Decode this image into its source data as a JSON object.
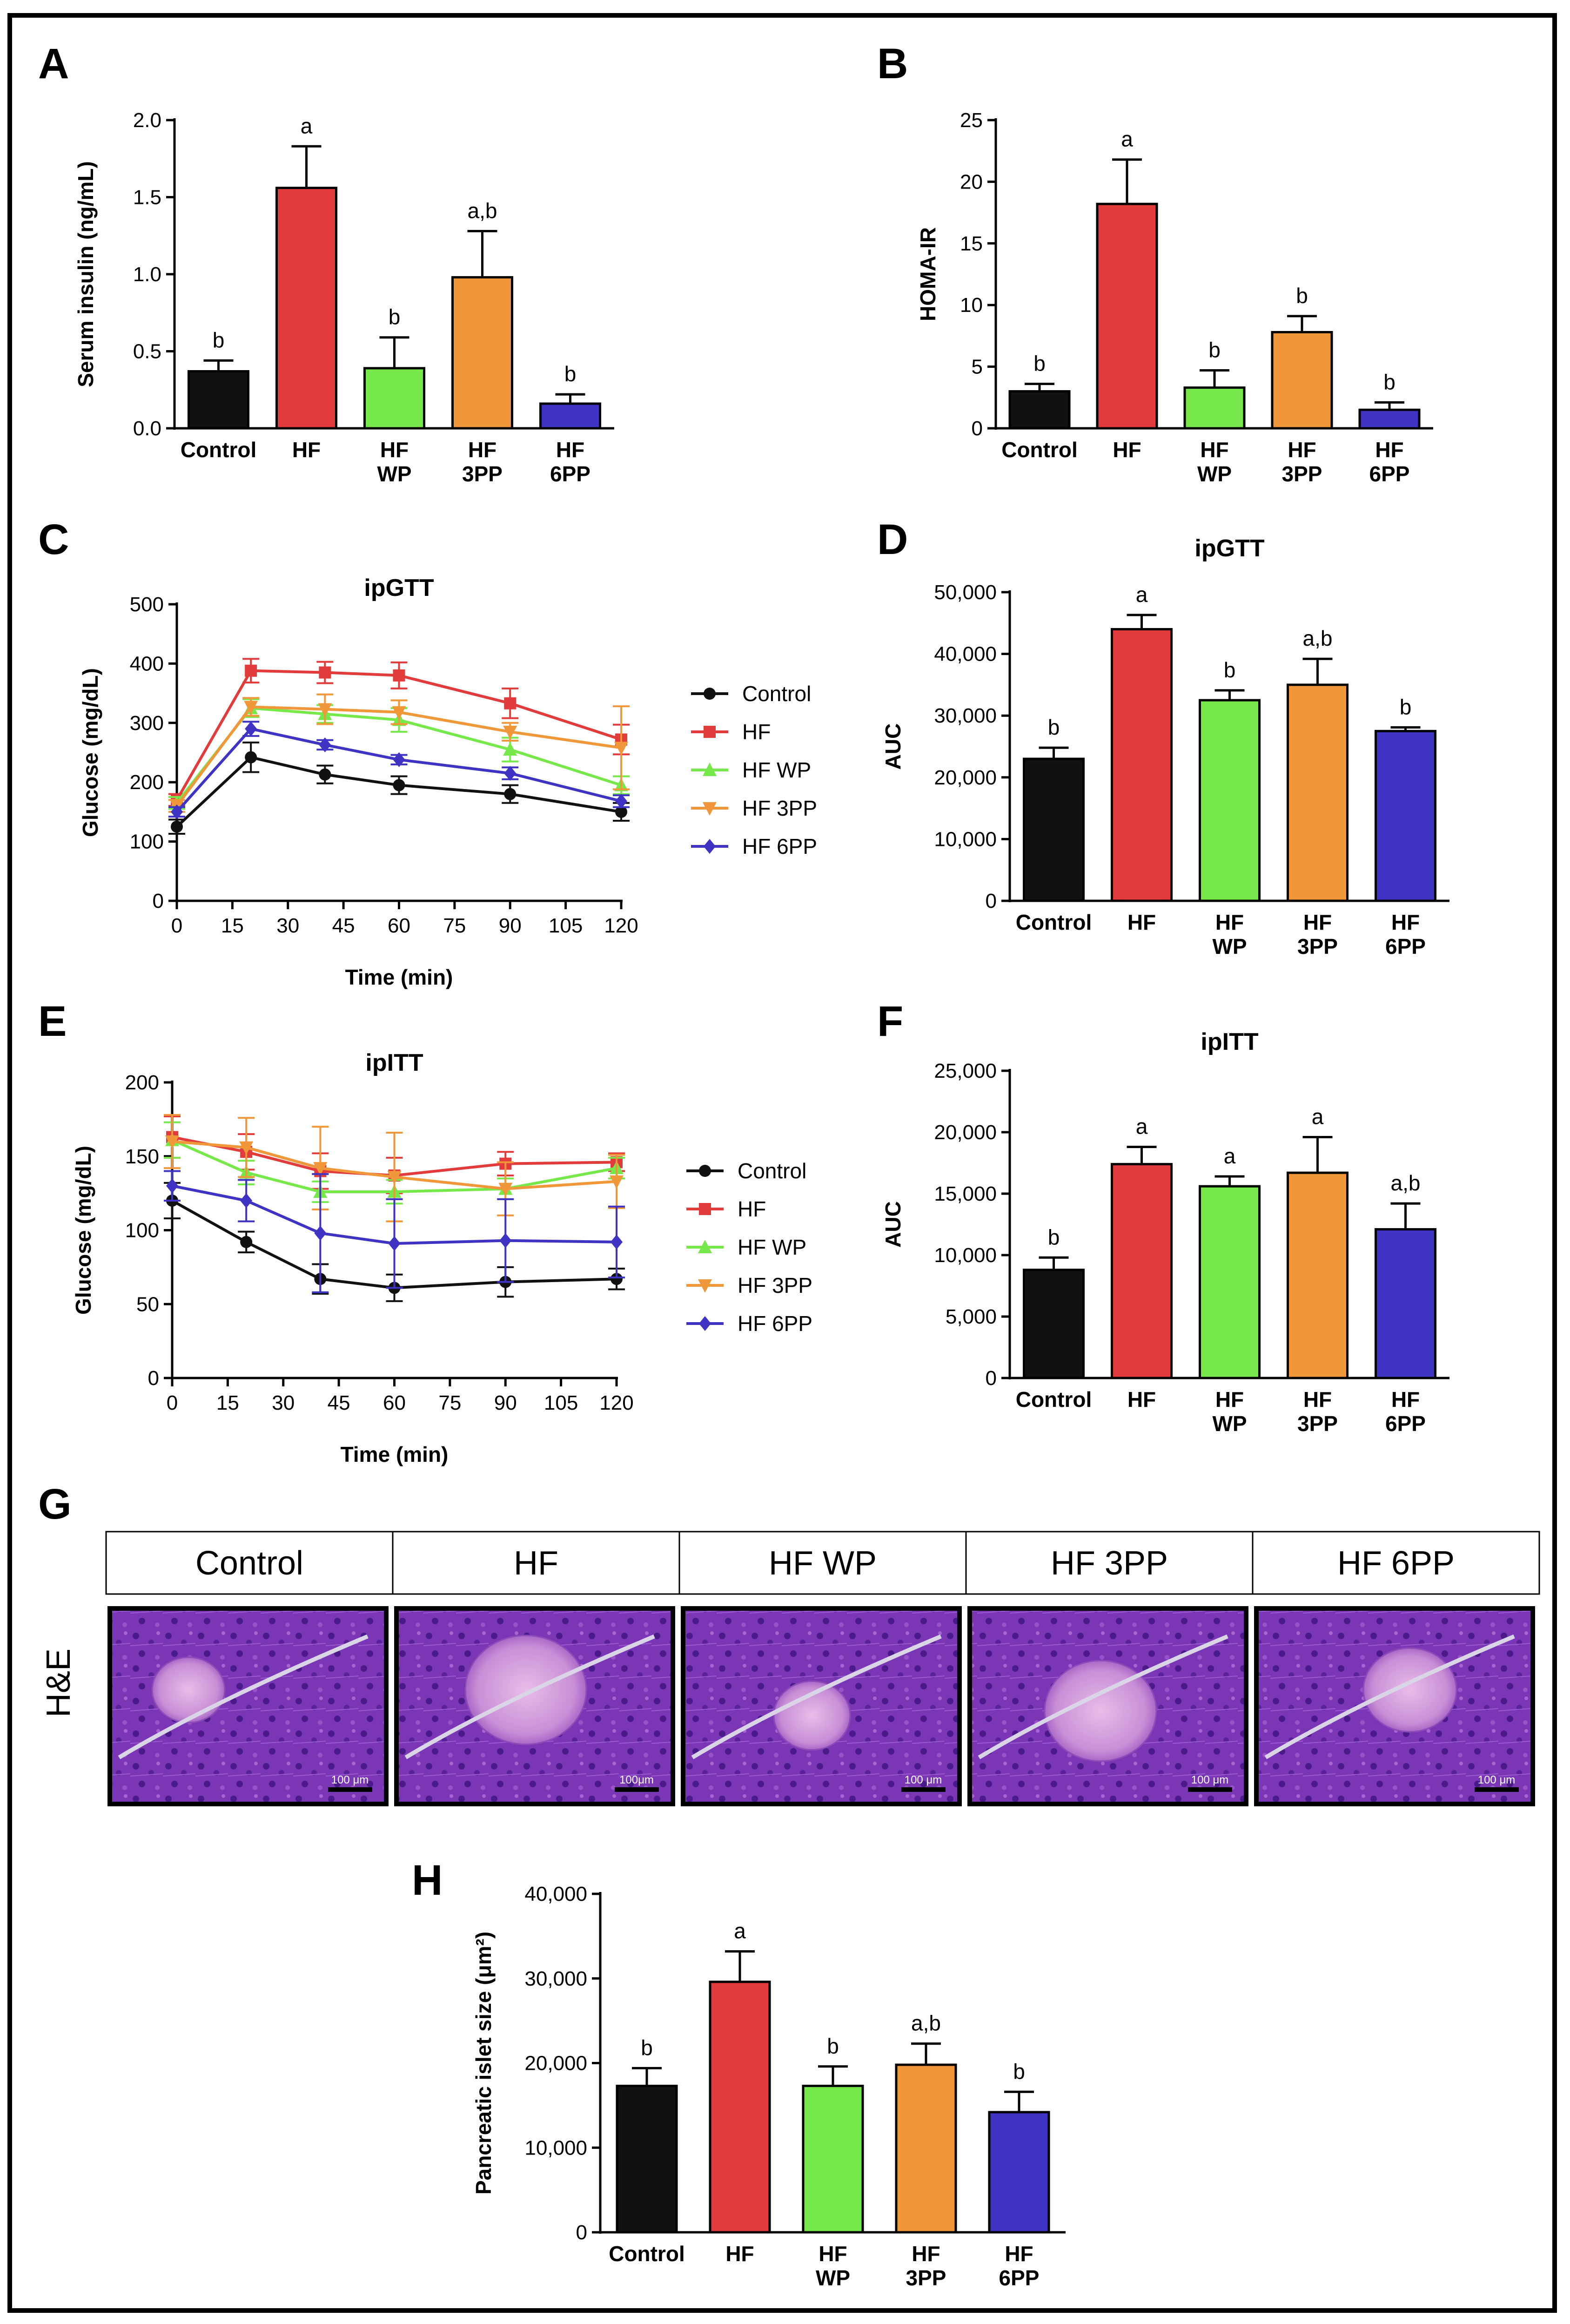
{
  "panel_letters": {
    "A": "A",
    "B": "B",
    "C": "C",
    "D": "D",
    "E": "E",
    "F": "F",
    "G": "G",
    "H": "H"
  },
  "colors": {
    "Control": "#111111",
    "HF": "#e23b3b",
    "HF WP": "#77e84a",
    "HF 3PP": "#f0973a",
    "HF 6PP": "#3f33c4"
  },
  "chart_data": [
    {
      "id": "A",
      "type": "bar",
      "title": "",
      "categories": [
        [
          "Control"
        ],
        [
          "HF"
        ],
        [
          "HF",
          "WP"
        ],
        [
          "HF",
          "3PP"
        ],
        [
          "HF",
          "6PP"
        ]
      ],
      "values": [
        0.37,
        1.56,
        0.39,
        0.98,
        0.16
      ],
      "errors": [
        0.07,
        0.27,
        0.2,
        0.3,
        0.06
      ],
      "significance": [
        "b",
        "a",
        "b",
        "a,b",
        "b"
      ],
      "ylabel": "Serum insulin (ng/mL)",
      "xlabel": "",
      "ylim": [
        0,
        2.0
      ],
      "yticks": [
        {
          "v": 0,
          "t": "0.0"
        },
        {
          "v": 0.5,
          "t": "0.5"
        },
        {
          "v": 1.0,
          "t": "1.0"
        },
        {
          "v": 1.5,
          "t": "1.5"
        },
        {
          "v": 2.0,
          "t": "2.0"
        }
      ]
    },
    {
      "id": "B",
      "type": "bar",
      "title": "",
      "categories": [
        [
          "Control"
        ],
        [
          "HF"
        ],
        [
          "HF",
          "WP"
        ],
        [
          "HF",
          "3PP"
        ],
        [
          "HF",
          "6PP"
        ]
      ],
      "values": [
        3.0,
        18.2,
        3.3,
        7.8,
        1.5
      ],
      "errors": [
        0.6,
        3.6,
        1.4,
        1.3,
        0.6
      ],
      "significance": [
        "b",
        "a",
        "b",
        "b",
        "b"
      ],
      "ylabel": "HOMA-IR",
      "xlabel": "",
      "ylim": [
        0,
        25
      ],
      "yticks": [
        {
          "v": 0,
          "t": "0"
        },
        {
          "v": 5,
          "t": "5"
        },
        {
          "v": 10,
          "t": "10"
        },
        {
          "v": 15,
          "t": "15"
        },
        {
          "v": 20,
          "t": "20"
        },
        {
          "v": 25,
          "t": "25"
        }
      ]
    },
    {
      "id": "C",
      "type": "line",
      "title": "ipGTT",
      "xlabel": "Time (min)",
      "ylabel": "Glucose (mg/dL)",
      "xlim": [
        0,
        120
      ],
      "ylim": [
        0,
        500
      ],
      "xticks": [
        0,
        15,
        30,
        45,
        60,
        75,
        90,
        105,
        120
      ],
      "yticks": [
        0,
        100,
        200,
        300,
        400,
        500
      ],
      "x": [
        0,
        20,
        40,
        60,
        90,
        120
      ],
      "series": [
        {
          "name": "Control",
          "marker": "circle",
          "values": [
            125,
            242,
            213,
            195,
            180,
            150
          ],
          "errors": [
            12,
            25,
            15,
            15,
            15,
            15
          ]
        },
        {
          "name": "HF",
          "marker": "square",
          "values": [
            170,
            388,
            385,
            380,
            333,
            272
          ],
          "errors": [
            10,
            20,
            18,
            22,
            25,
            25
          ]
        },
        {
          "name": "HF WP",
          "marker": "triangle-up",
          "values": [
            165,
            325,
            315,
            305,
            255,
            195
          ],
          "errors": [
            10,
            15,
            15,
            20,
            20,
            15
          ]
        },
        {
          "name": "HF 3PP",
          "marker": "triangle-down",
          "values": [
            160,
            327,
            323,
            318,
            285,
            258
          ],
          "errors": [
            10,
            15,
            25,
            20,
            15,
            70
          ]
        },
        {
          "name": "HF 6PP",
          "marker": "diamond",
          "values": [
            150,
            290,
            263,
            238,
            215,
            168
          ],
          "errors": [
            8,
            12,
            8,
            8,
            10,
            10
          ]
        }
      ]
    },
    {
      "id": "D",
      "type": "bar",
      "title": "ipGTT",
      "categories": [
        [
          "Control"
        ],
        [
          "HF"
        ],
        [
          "HF",
          "WP"
        ],
        [
          "HF",
          "3PP"
        ],
        [
          "HF",
          "6PP"
        ]
      ],
      "values": [
        23000,
        44000,
        32500,
        35000,
        27500
      ],
      "errors": [
        1800,
        2300,
        1600,
        4200,
        600
      ],
      "significance": [
        "b",
        "a",
        "b",
        "a,b",
        "b"
      ],
      "ylabel": "AUC",
      "xlabel": "",
      "ylim": [
        0,
        50000
      ],
      "yticks": [
        {
          "v": 0,
          "t": "0"
        },
        {
          "v": 10000,
          "t": "10,000"
        },
        {
          "v": 20000,
          "t": "20,000"
        },
        {
          "v": 30000,
          "t": "30,000"
        },
        {
          "v": 40000,
          "t": "40,000"
        },
        {
          "v": 50000,
          "t": "50,000"
        }
      ]
    },
    {
      "id": "E",
      "type": "line",
      "title": "ipITT",
      "xlabel": "Time (min)",
      "ylabel": "Glucose (mg/dL)",
      "xlim": [
        0,
        120
      ],
      "ylim": [
        0,
        200
      ],
      "xticks": [
        0,
        15,
        30,
        45,
        60,
        75,
        90,
        105,
        120
      ],
      "yticks": [
        0,
        50,
        100,
        150,
        200
      ],
      "x": [
        0,
        20,
        40,
        60,
        90,
        120
      ],
      "series": [
        {
          "name": "Control",
          "marker": "circle",
          "values": [
            120,
            92,
            67,
            61,
            65,
            67
          ],
          "errors": [
            12,
            7,
            10,
            9,
            10,
            7
          ]
        },
        {
          "name": "HF",
          "marker": "square",
          "values": [
            163,
            153,
            140,
            137,
            145,
            146
          ],
          "errors": [
            14,
            12,
            12,
            12,
            8,
            6
          ]
        },
        {
          "name": "HF WP",
          "marker": "triangle-up",
          "values": [
            161,
            139,
            126,
            126,
            128,
            142
          ],
          "errors": [
            12,
            8,
            7,
            8,
            7,
            7
          ]
        },
        {
          "name": "HF 3PP",
          "marker": "triangle-down",
          "values": [
            160,
            156,
            142,
            136,
            128,
            133
          ],
          "errors": [
            18,
            20,
            28,
            30,
            18,
            18
          ]
        },
        {
          "name": "HF 6PP",
          "marker": "diamond",
          "values": [
            130,
            120,
            98,
            91,
            93,
            92
          ],
          "errors": [
            10,
            14,
            40,
            30,
            28,
            24
          ]
        }
      ]
    },
    {
      "id": "F",
      "type": "bar",
      "title": "ipITT",
      "categories": [
        [
          "Control"
        ],
        [
          "HF"
        ],
        [
          "HF",
          "WP"
        ],
        [
          "HF",
          "3PP"
        ],
        [
          "HF",
          "6PP"
        ]
      ],
      "values": [
        8800,
        17400,
        15600,
        16700,
        12100
      ],
      "errors": [
        1000,
        1400,
        800,
        2900,
        2100
      ],
      "significance": [
        "b",
        "a",
        "a",
        "a",
        "a,b"
      ],
      "ylabel": "AUC",
      "xlabel": "",
      "ylim": [
        0,
        25000
      ],
      "yticks": [
        {
          "v": 0,
          "t": "0"
        },
        {
          "v": 5000,
          "t": "5,000"
        },
        {
          "v": 10000,
          "t": "10,000"
        },
        {
          "v": 15000,
          "t": "15,000"
        },
        {
          "v": 20000,
          "t": "20,000"
        },
        {
          "v": 25000,
          "t": "25,000"
        }
      ]
    },
    {
      "id": "H",
      "type": "bar",
      "title": "",
      "categories": [
        [
          "Control"
        ],
        [
          "HF"
        ],
        [
          "HF",
          "WP"
        ],
        [
          "HF",
          "3PP"
        ],
        [
          "HF",
          "6PP"
        ]
      ],
      "values": [
        17300,
        29600,
        17300,
        19800,
        14200
      ],
      "errors": [
        2100,
        3600,
        2300,
        2500,
        2400
      ],
      "significance": [
        "b",
        "a",
        "b",
        "a,b",
        "b"
      ],
      "ylabel": "Pancreatic islet size  (μm²)",
      "xlabel": "",
      "ylim": [
        0,
        40000
      ],
      "yticks": [
        {
          "v": 0,
          "t": "0"
        },
        {
          "v": 10000,
          "t": "10,000"
        },
        {
          "v": 20000,
          "t": "20,000"
        },
        {
          "v": 30000,
          "t": "30,000"
        },
        {
          "v": 40000,
          "t": "40,000"
        }
      ]
    }
  ],
  "histology": {
    "row_label": "H&E",
    "groups": [
      "Control",
      "HF",
      "HF WP",
      "HF 3PP",
      "HF 6PP"
    ],
    "scale_bars": [
      "100 μm",
      "100μm",
      "100 μm",
      "100 μm",
      "100 μm"
    ]
  }
}
